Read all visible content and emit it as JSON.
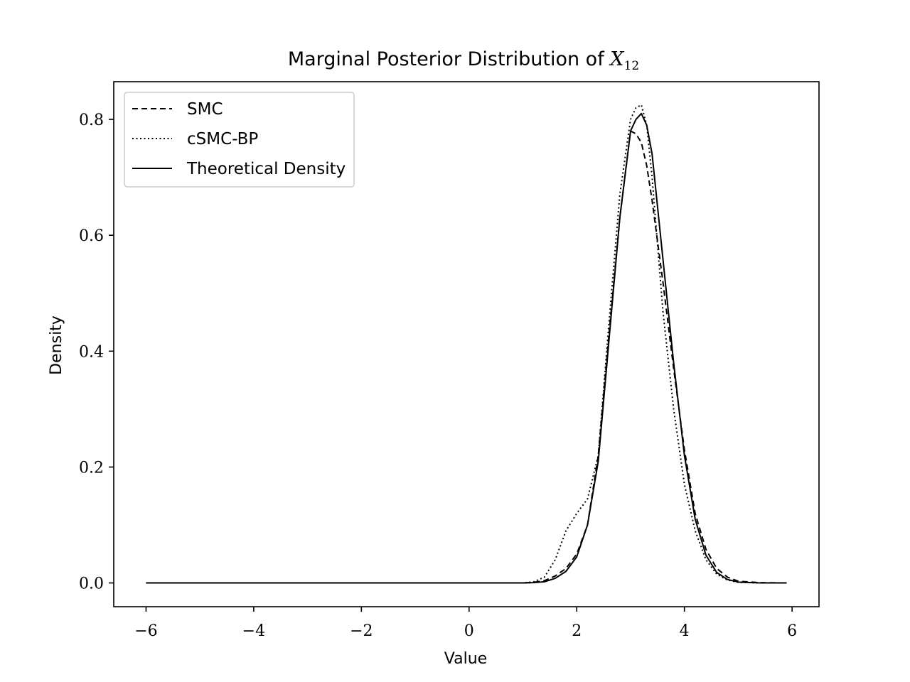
{
  "chart_data": {
    "type": "line",
    "title": {
      "prefix": "Marginal Posterior Distribution of ",
      "symbol": "X",
      "subscript": "12"
    },
    "xlabel": "Value",
    "ylabel": "Density",
    "xlim": [
      -6.6,
      6.5
    ],
    "ylim": [
      -0.041,
      0.865
    ],
    "xticks": [
      -6,
      -4,
      -2,
      0,
      2,
      4,
      6
    ],
    "xtick_labels": [
      "−6",
      "−4",
      "−2",
      "0",
      "2",
      "4",
      "6"
    ],
    "yticks": [
      0.0,
      0.2,
      0.4,
      0.6,
      0.8
    ],
    "ytick_labels": [
      "0.0",
      "0.2",
      "0.4",
      "0.6",
      "0.8"
    ],
    "grid": false,
    "legend_position": "top-left",
    "series": [
      {
        "name": "SMC",
        "style": "dashed",
        "color": "#000000",
        "x": [
          -6.0,
          1.0,
          1.2,
          1.4,
          1.6,
          1.8,
          2.0,
          2.2,
          2.4,
          2.6,
          2.8,
          3.0,
          3.1,
          3.2,
          3.3,
          3.4,
          3.6,
          3.8,
          4.0,
          4.2,
          4.4,
          4.6,
          4.8,
          5.0,
          5.4,
          5.9
        ],
        "y": [
          0.0,
          0.0,
          0.001,
          0.004,
          0.012,
          0.025,
          0.05,
          0.1,
          0.22,
          0.43,
          0.63,
          0.78,
          0.775,
          0.76,
          0.72,
          0.66,
          0.52,
          0.37,
          0.23,
          0.12,
          0.058,
          0.025,
          0.01,
          0.003,
          0.0005,
          0.0
        ]
      },
      {
        "name": "cSMC-BP",
        "style": "dotted",
        "color": "#000000",
        "x": [
          -6.0,
          1.0,
          1.2,
          1.4,
          1.6,
          1.8,
          2.0,
          2.2,
          2.4,
          2.6,
          2.8,
          3.0,
          3.1,
          3.2,
          3.3,
          3.4,
          3.6,
          3.8,
          4.0,
          4.2,
          4.4,
          4.6,
          4.8,
          5.0,
          5.4,
          5.9
        ],
        "y": [
          0.0,
          0.0,
          0.002,
          0.01,
          0.04,
          0.09,
          0.12,
          0.145,
          0.22,
          0.45,
          0.67,
          0.8,
          0.82,
          0.825,
          0.79,
          0.7,
          0.47,
          0.3,
          0.17,
          0.09,
          0.04,
          0.015,
          0.005,
          0.001,
          0.0,
          0.0
        ]
      },
      {
        "name": "Theoretical Density",
        "style": "solid",
        "color": "#000000",
        "x": [
          -6.0,
          1.0,
          1.2,
          1.4,
          1.6,
          1.8,
          2.0,
          2.2,
          2.4,
          2.6,
          2.8,
          3.0,
          3.1,
          3.2,
          3.3,
          3.4,
          3.6,
          3.8,
          4.0,
          4.2,
          4.4,
          4.6,
          4.8,
          5.0,
          5.4,
          5.9
        ],
        "y": [
          0.0,
          0.0,
          0.0005,
          0.002,
          0.008,
          0.02,
          0.045,
          0.1,
          0.21,
          0.42,
          0.63,
          0.78,
          0.8,
          0.81,
          0.79,
          0.74,
          0.56,
          0.38,
          0.22,
          0.11,
          0.048,
          0.018,
          0.006,
          0.0015,
          0.0,
          0.0
        ]
      }
    ]
  }
}
